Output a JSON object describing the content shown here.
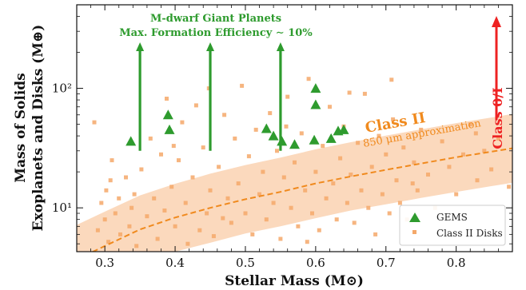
{
  "chart_data": {
    "type": "scatter",
    "xlabel": "Stellar Mass (M⊙)",
    "ylabel_line1": "Mass of Solids",
    "ylabel_line2": "Exoplanets and Disks (M⊕)",
    "xlim": [
      0.26,
      0.88
    ],
    "ylim": [
      4.3,
      500
    ],
    "y_scale": "log",
    "x_ticks": [
      0.3,
      0.4,
      0.5,
      0.6,
      0.7,
      0.8
    ],
    "x_tick_labels": [
      "0.3",
      "0.4",
      "0.5",
      "0.6",
      "0.7",
      "0.8"
    ],
    "y_ticks": [
      10,
      100
    ],
    "y_tick_labels": [
      "10¹",
      "10²"
    ],
    "grid": false,
    "legend_position": "bottom-right",
    "series": [
      {
        "name": "GEMS",
        "marker": "triangle",
        "color": "#2e9b2e",
        "points": [
          {
            "x": 0.337,
            "y": 36
          },
          {
            "x": 0.39,
            "y": 60
          },
          {
            "x": 0.392,
            "y": 45
          },
          {
            "x": 0.53,
            "y": 46
          },
          {
            "x": 0.54,
            "y": 40
          },
          {
            "x": 0.552,
            "y": 36
          },
          {
            "x": 0.57,
            "y": 34
          },
          {
            "x": 0.598,
            "y": 37
          },
          {
            "x": 0.6,
            "y": 100
          },
          {
            "x": 0.6,
            "y": 73
          },
          {
            "x": 0.622,
            "y": 38
          },
          {
            "x": 0.632,
            "y": 44
          },
          {
            "x": 0.64,
            "y": 45
          }
        ]
      },
      {
        "name": "Class II Disks",
        "marker": "square",
        "color": "#f4a86a",
        "points": [
          {
            "x": 0.285,
            "y": 52
          },
          {
            "x": 0.29,
            "y": 6.5
          },
          {
            "x": 0.295,
            "y": 11
          },
          {
            "x": 0.3,
            "y": 8
          },
          {
            "x": 0.302,
            "y": 14
          },
          {
            "x": 0.305,
            "y": 5.2
          },
          {
            "x": 0.31,
            "y": 25
          },
          {
            "x": 0.315,
            "y": 9
          },
          {
            "x": 0.32,
            "y": 12
          },
          {
            "x": 0.322,
            "y": 6
          },
          {
            "x": 0.33,
            "y": 18
          },
          {
            "x": 0.335,
            "y": 7
          },
          {
            "x": 0.338,
            "y": 10
          },
          {
            "x": 0.345,
            "y": 4.8
          },
          {
            "x": 0.352,
            "y": 21
          },
          {
            "x": 0.36,
            "y": 8.5
          },
          {
            "x": 0.365,
            "y": 38
          },
          {
            "x": 0.37,
            "y": 12
          },
          {
            "x": 0.375,
            "y": 5.5
          },
          {
            "x": 0.38,
            "y": 28
          },
          {
            "x": 0.385,
            "y": 9.5
          },
          {
            "x": 0.388,
            "y": 82
          },
          {
            "x": 0.395,
            "y": 15
          },
          {
            "x": 0.4,
            "y": 7
          },
          {
            "x": 0.405,
            "y": 25
          },
          {
            "x": 0.41,
            "y": 52
          },
          {
            "x": 0.415,
            "y": 11
          },
          {
            "x": 0.418,
            "y": 5
          },
          {
            "x": 0.425,
            "y": 18
          },
          {
            "x": 0.43,
            "y": 72
          },
          {
            "x": 0.435,
            "y": 6.5
          },
          {
            "x": 0.44,
            "y": 32
          },
          {
            "x": 0.445,
            "y": 9
          },
          {
            "x": 0.45,
            "y": 14
          },
          {
            "x": 0.455,
            "y": 5.8
          },
          {
            "x": 0.462,
            "y": 22
          },
          {
            "x": 0.47,
            "y": 60
          },
          {
            "x": 0.475,
            "y": 12
          },
          {
            "x": 0.48,
            "y": 7.5
          },
          {
            "x": 0.485,
            "y": 38
          },
          {
            "x": 0.49,
            "y": 16
          },
          {
            "x": 0.495,
            "y": 105
          },
          {
            "x": 0.5,
            "y": 9
          },
          {
            "x": 0.505,
            "y": 27
          },
          {
            "x": 0.51,
            "y": 6
          },
          {
            "x": 0.515,
            "y": 45
          },
          {
            "x": 0.52,
            "y": 13
          },
          {
            "x": 0.525,
            "y": 20
          },
          {
            "x": 0.53,
            "y": 8
          },
          {
            "x": 0.535,
            "y": 62
          },
          {
            "x": 0.54,
            "y": 11
          },
          {
            "x": 0.545,
            "y": 30
          },
          {
            "x": 0.55,
            "y": 5.5
          },
          {
            "x": 0.555,
            "y": 18
          },
          {
            "x": 0.56,
            "y": 85
          },
          {
            "x": 0.565,
            "y": 10
          },
          {
            "x": 0.57,
            "y": 24
          },
          {
            "x": 0.575,
            "y": 7
          },
          {
            "x": 0.58,
            "y": 42
          },
          {
            "x": 0.585,
            "y": 14
          },
          {
            "x": 0.59,
            "y": 120
          },
          {
            "x": 0.595,
            "y": 9
          },
          {
            "x": 0.6,
            "y": 20
          },
          {
            "x": 0.605,
            "y": 6.5
          },
          {
            "x": 0.61,
            "y": 33
          },
          {
            "x": 0.615,
            "y": 12
          },
          {
            "x": 0.62,
            "y": 70
          },
          {
            "x": 0.625,
            "y": 16
          },
          {
            "x": 0.63,
            "y": 8
          },
          {
            "x": 0.635,
            "y": 26
          },
          {
            "x": 0.64,
            "y": 48
          },
          {
            "x": 0.645,
            "y": 11
          },
          {
            "x": 0.65,
            "y": 19
          },
          {
            "x": 0.655,
            "y": 7.5
          },
          {
            "x": 0.66,
            "y": 35
          },
          {
            "x": 0.665,
            "y": 14
          },
          {
            "x": 0.67,
            "y": 90
          },
          {
            "x": 0.675,
            "y": 10
          },
          {
            "x": 0.68,
            "y": 22
          },
          {
            "x": 0.685,
            "y": 6
          },
          {
            "x": 0.69,
            "y": 40
          },
          {
            "x": 0.695,
            "y": 13
          },
          {
            "x": 0.7,
            "y": 28
          },
          {
            "x": 0.705,
            "y": 9
          },
          {
            "x": 0.71,
            "y": 55
          },
          {
            "x": 0.715,
            "y": 17
          },
          {
            "x": 0.72,
            "y": 11
          },
          {
            "x": 0.725,
            "y": 32
          },
          {
            "x": 0.73,
            "y": 8
          },
          {
            "x": 0.74,
            "y": 24
          },
          {
            "x": 0.745,
            "y": 14
          },
          {
            "x": 0.75,
            "y": 45
          },
          {
            "x": 0.76,
            "y": 19
          },
          {
            "x": 0.77,
            "y": 10
          },
          {
            "x": 0.78,
            "y": 36
          },
          {
            "x": 0.79,
            "y": 22
          },
          {
            "x": 0.8,
            "y": 13
          },
          {
            "x": 0.81,
            "y": 28
          },
          {
            "x": 0.82,
            "y": 50
          },
          {
            "x": 0.83,
            "y": 17
          },
          {
            "x": 0.84,
            "y": 30
          },
          {
            "x": 0.85,
            "y": 21
          },
          {
            "x": 0.86,
            "y": 38
          },
          {
            "x": 0.875,
            "y": 15
          },
          {
            "x": 0.308,
            "y": 17
          },
          {
            "x": 0.398,
            "y": 33
          },
          {
            "x": 0.468,
            "y": 8.2
          },
          {
            "x": 0.558,
            "y": 48
          },
          {
            "x": 0.648,
            "y": 92
          },
          {
            "x": 0.738,
            "y": 16
          },
          {
            "x": 0.828,
            "y": 42
          },
          {
            "x": 0.342,
            "y": 13
          },
          {
            "x": 0.448,
            "y": 100
          },
          {
            "x": 0.588,
            "y": 5.2
          },
          {
            "x": 0.708,
            "y": 118
          }
        ]
      }
    ],
    "class2_band": {
      "x": [
        0.26,
        0.3,
        0.35,
        0.4,
        0.45,
        0.5,
        0.55,
        0.6,
        0.65,
        0.7,
        0.75,
        0.8,
        0.85,
        0.88
      ],
      "center": [
        3.7,
        4.8,
        6.6,
        8.3,
        10.0,
        11.8,
        13.6,
        16.0,
        18.3,
        20.8,
        23.5,
        26.5,
        29.5,
        31.5
      ],
      "lower": [
        1.9,
        2.5,
        3.4,
        4.3,
        5.1,
        6.1,
        7.0,
        8.2,
        9.5,
        10.7,
        12.1,
        13.6,
        15.2,
        16.2
      ],
      "upper": [
        7.2,
        9.3,
        12.7,
        15.9,
        19.3,
        22.8,
        26.3,
        30.9,
        35.4,
        40.2,
        45.4,
        51.2,
        57.0,
        61.0
      ],
      "color": "#fbd9bd",
      "line_color": "#f08a1e"
    },
    "annotations": {
      "mdwarf_line1": "M-dwarf Giant Planets",
      "mdwarf_line2": "Max. Formation Efficiency ∼ 10%",
      "class2_title": "Class II",
      "class2_sub": "850 μm approximation",
      "class0": "Class 0/I",
      "green_arrows": [
        {
          "x": 0.35,
          "y_from": 30,
          "y_to": 500
        },
        {
          "x": 0.45,
          "y_from": 30,
          "y_to": 500
        },
        {
          "x": 0.55,
          "y_from": 30,
          "y_to": 500
        }
      ],
      "red_arrow_x": 0.855
    }
  }
}
